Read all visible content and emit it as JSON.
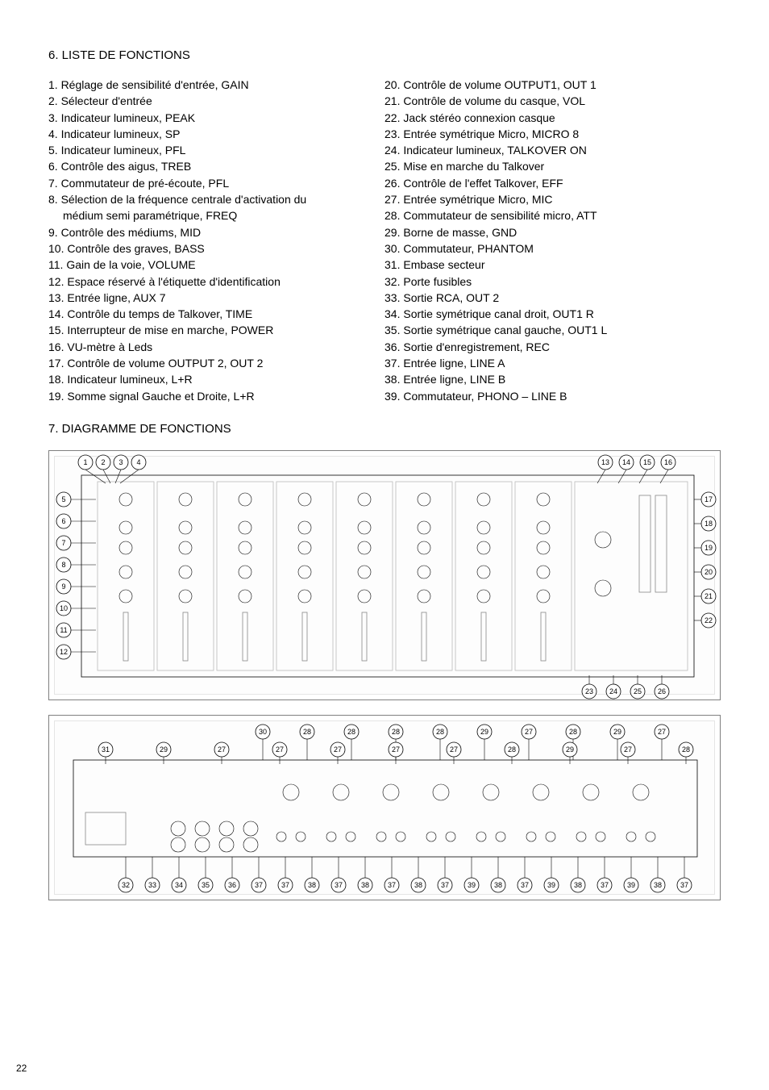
{
  "page_number": "22",
  "section6_title": "6. LISTE DE FONCTIONS",
  "section7_title": "7. DIAGRAMME DE FONCTIONS",
  "functions_left": [
    {
      "n": "1.",
      "text": "Réglage de sensibilité d'entrée, GAIN"
    },
    {
      "n": "2.",
      "text": "Sélecteur d'entrée"
    },
    {
      "n": "3.",
      "text": "Indicateur lumineux, PEAK"
    },
    {
      "n": "4.",
      "text": "Indicateur lumineux, SP"
    },
    {
      "n": "5.",
      "text": "Indicateur lumineux, PFL"
    },
    {
      "n": "6.",
      "text": "Contrôle des aigus, TREB"
    },
    {
      "n": "7.",
      "text": "Commutateur de pré-écoute, PFL"
    },
    {
      "n": "8.",
      "text": "Sélection de la fréquence centrale d'activation du"
    },
    {
      "n": "",
      "text": "médium semi paramétrique, FREQ",
      "indent": true
    },
    {
      "n": "9.",
      "text": "Contrôle des médiums, MID"
    },
    {
      "n": "10.",
      "text": "Contrôle des graves, BASS"
    },
    {
      "n": "11.",
      "text": "Gain de la voie, VOLUME"
    },
    {
      "n": "12.",
      "text": "Espace réservé à l'étiquette d'identification"
    },
    {
      "n": "13.",
      "text": "Entrée ligne, AUX 7"
    },
    {
      "n": "14.",
      "text": "Contrôle du temps de Talkover, TIME"
    },
    {
      "n": "15.",
      "text": "Interrupteur de mise en marche, POWER"
    },
    {
      "n": "16.",
      "text": "VU-mètre à Leds"
    },
    {
      "n": "17.",
      "text": "Contrôle de volume OUTPUT 2, OUT 2"
    },
    {
      "n": "18.",
      "text": "Indicateur lumineux, L+R"
    },
    {
      "n": "19.",
      "text": "Somme signal Gauche et Droite, L+R"
    }
  ],
  "functions_right": [
    {
      "n": "20.",
      "text": "Contrôle de volume OUTPUT1, OUT 1"
    },
    {
      "n": "21.",
      "text": "Contrôle de volume du casque, VOL"
    },
    {
      "n": "22.",
      "text": "Jack stéréo connexion casque"
    },
    {
      "n": "23.",
      "text": "Entrée symétrique Micro, MICRO 8"
    },
    {
      "n": "24.",
      "text": "Indicateur lumineux, TALKOVER ON"
    },
    {
      "n": "25.",
      "text": "Mise en marche du Talkover"
    },
    {
      "n": "26.",
      "text": "Contrôle de l'effet Talkover, EFF"
    },
    {
      "n": "27.",
      "text": "Entrée symétrique Micro, MIC"
    },
    {
      "n": "28.",
      "text": "Commutateur de sensibilité micro, ATT"
    },
    {
      "n": "29.",
      "text": "Borne de masse, GND"
    },
    {
      "n": "30.",
      "text": "Commutateur, PHANTOM"
    },
    {
      "n": "31.",
      "text": "Embase secteur"
    },
    {
      "n": "32.",
      "text": "Porte fusibles"
    },
    {
      "n": "33.",
      "text": "Sortie RCA, OUT 2"
    },
    {
      "n": "34.",
      "text": "Sortie symétrique canal droit, OUT1 R"
    },
    {
      "n": "35.",
      "text": "Sortie symétrique canal gauche, OUT1 L"
    },
    {
      "n": "36.",
      "text": "Sortie d'enregistrement, REC"
    },
    {
      "n": "37.",
      "text": "Entrée ligne, LINE A"
    },
    {
      "n": "38.",
      "text": "Entrée ligne, LINE B"
    },
    {
      "n": "39.",
      "text": "Commutateur, PHONO – LINE B"
    }
  ],
  "diagram_top": {
    "type": "technical-diagram",
    "description": "Front panel labelled with callout circles",
    "callouts_left_top": [
      "1",
      "2",
      "3",
      "4"
    ],
    "callouts_left_side": [
      "5",
      "6",
      "7",
      "8",
      "9",
      "10",
      "11",
      "12"
    ],
    "callouts_right_top": [
      "13",
      "14",
      "15",
      "16"
    ],
    "callouts_right_side": [
      "17",
      "18",
      "19",
      "20",
      "21",
      "22"
    ],
    "callouts_bottom_right": [
      "26",
      "25",
      "24",
      "23"
    ]
  },
  "diagram_bottom": {
    "type": "technical-diagram",
    "description": "Rear panel labelled with callout circles",
    "callouts_top_row": [
      "30",
      "28",
      "28",
      "28",
      "28",
      "29",
      "27",
      "28",
      "29",
      "27"
    ],
    "callouts_top_row2": [
      "31",
      "29",
      "27",
      "27",
      "27",
      "27",
      "27",
      "28",
      "29",
      "27",
      "28"
    ],
    "callouts_bottom_row": [
      "32",
      "33",
      "34",
      "35",
      "36",
      "37",
      "37",
      "38",
      "37",
      "38",
      "37",
      "38",
      "37",
      "39",
      "38",
      "37",
      "39",
      "38",
      "37",
      "39",
      "38",
      "37"
    ]
  },
  "styling": {
    "font_family": "Arial",
    "text_color": "#000000",
    "background_color": "#ffffff",
    "body_fontsize": 14,
    "title_fontsize": 15,
    "diagram_border_color": "#808080",
    "diagram_width": 834,
    "diagram_top_height": 310,
    "diagram_bottom_height": 230
  }
}
